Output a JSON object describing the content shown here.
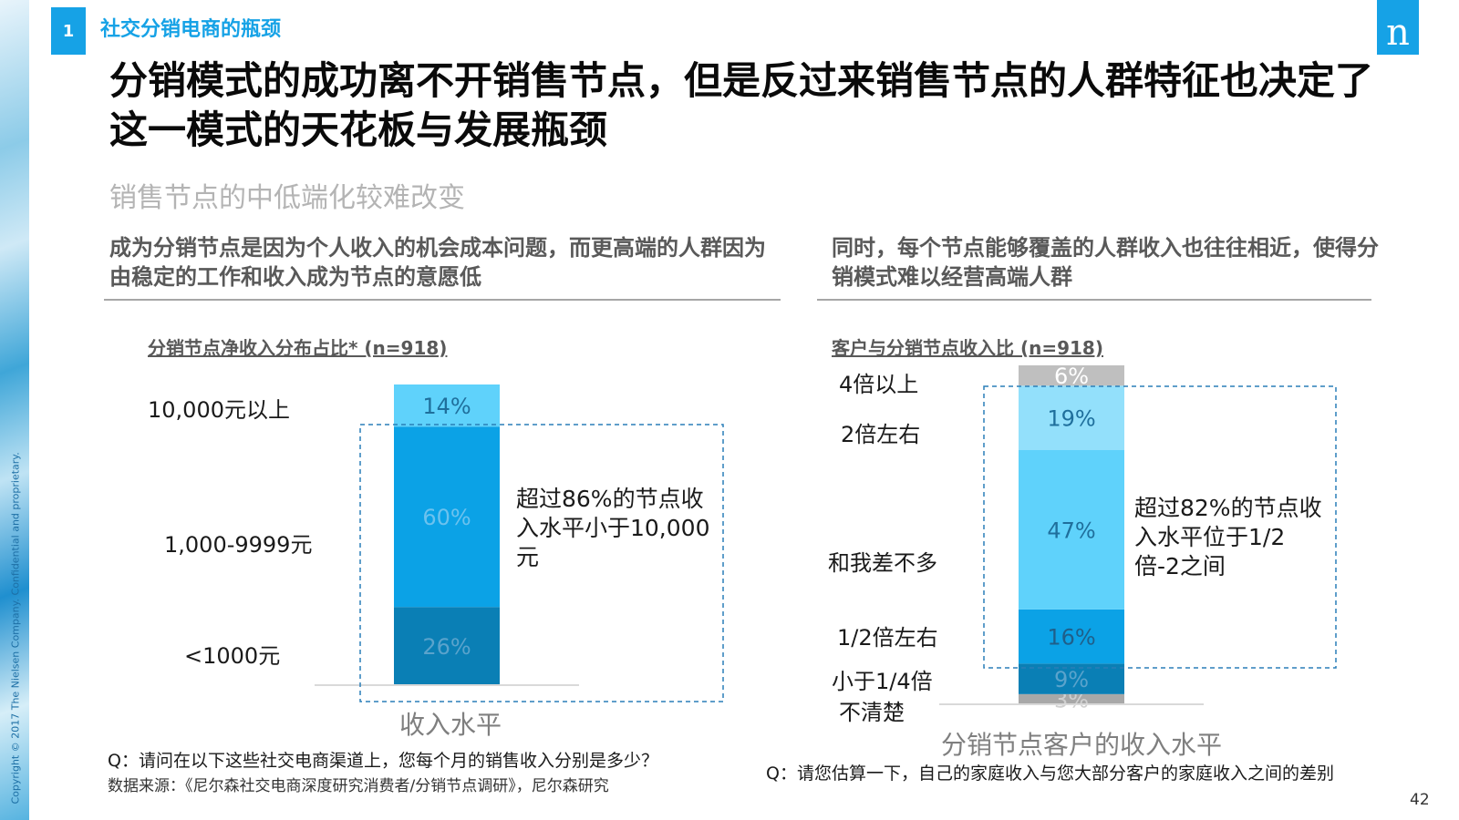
{
  "copyright": "Copyright © 2017 The Nielsen Company. Confidential and proprietary.",
  "section": {
    "number": "1",
    "title": "社交分销电商的瓶颈"
  },
  "logo": "n",
  "title": "分销模式的成功离不开销售节点，但是反过来销售节点的人群特征也决定了这一模式的天花板与发展瓶颈",
  "subtitle": "销售节点的中低端化较难改变",
  "left_text": "成为分销节点是因为个人收入的机会成本问题，而更高端的人群因为由稳定的工作和收入成为节点的意愿低",
  "right_text": "同时，每个节点能够覆盖的人群收入也往往相近，使得分销模式难以经营高端人群",
  "left_callout": "超过86%的节点收入水平小于10,000元",
  "right_callout": "超过82%的节点收入水平位于1/2倍-2之间",
  "left_question": "Q：请问在以下这些社交电商渠道上，您每个月的销售收入分别是多少？",
  "source": "数据来源：《尼尔森社交电商深度研究消费者/分销节点调研》，尼尔森研究",
  "right_question": "Q：请您估算一下，自己的家庭收入与您大部分客户的家庭收入之间的差别",
  "page_number": "42",
  "colors": {
    "accent": "#16a2e6",
    "dashed_box": "#2a7fb8"
  },
  "chart_data": [
    {
      "type": "bar",
      "stacked": true,
      "title": "分销节点净收入分布占比* (n=918)",
      "xlabel": "收入水平",
      "categories": [
        "收入水平"
      ],
      "series": [
        {
          "name": "<1000元",
          "values": [
            26
          ],
          "label": "26%",
          "color": "#0a7fb5",
          "text_color": "#5aa3cc"
        },
        {
          "name": "1,000-9999元",
          "values": [
            60
          ],
          "label": "60%",
          "color": "#0ba2e6",
          "text_color": "#6cc2ee"
        },
        {
          "name": "10,000元以上",
          "values": [
            14
          ],
          "label": "14%",
          "color": "#5fd2fb",
          "text_color": "#1f6f9c"
        }
      ],
      "ylim": [
        0,
        100
      ]
    },
    {
      "type": "bar",
      "stacked": true,
      "title": "客户与分销节点收入比 (n=918)",
      "xlabel": "分销节点客户的收入水平",
      "categories": [
        "分销节点客户的收入水平"
      ],
      "series": [
        {
          "name": "不清楚",
          "values": [
            3
          ],
          "label": "3%",
          "color": "#a8a8a8",
          "text_color": "#d0d0d0"
        },
        {
          "name": "小于1/4倍",
          "values": [
            9
          ],
          "label": "9%",
          "color": "#0a7fb5",
          "text_color": "#5aa3cc"
        },
        {
          "name": "1/2倍左右",
          "values": [
            16
          ],
          "label": "16%",
          "color": "#0ba2e6",
          "text_color": "#1f5f8a"
        },
        {
          "name": "和我差不多",
          "values": [
            47
          ],
          "label": "47%",
          "color": "#5fd2fb",
          "text_color": "#1f6f9c"
        },
        {
          "name": "2倍左右",
          "values": [
            19
          ],
          "label": "19%",
          "color": "#93e0fb",
          "text_color": "#1f6f9c"
        },
        {
          "name": "4倍以上",
          "values": [
            6
          ],
          "label": "6%",
          "color": "#bfbfbf",
          "text_color": "#ffffff"
        }
      ],
      "ylim": [
        0,
        100
      ]
    }
  ]
}
